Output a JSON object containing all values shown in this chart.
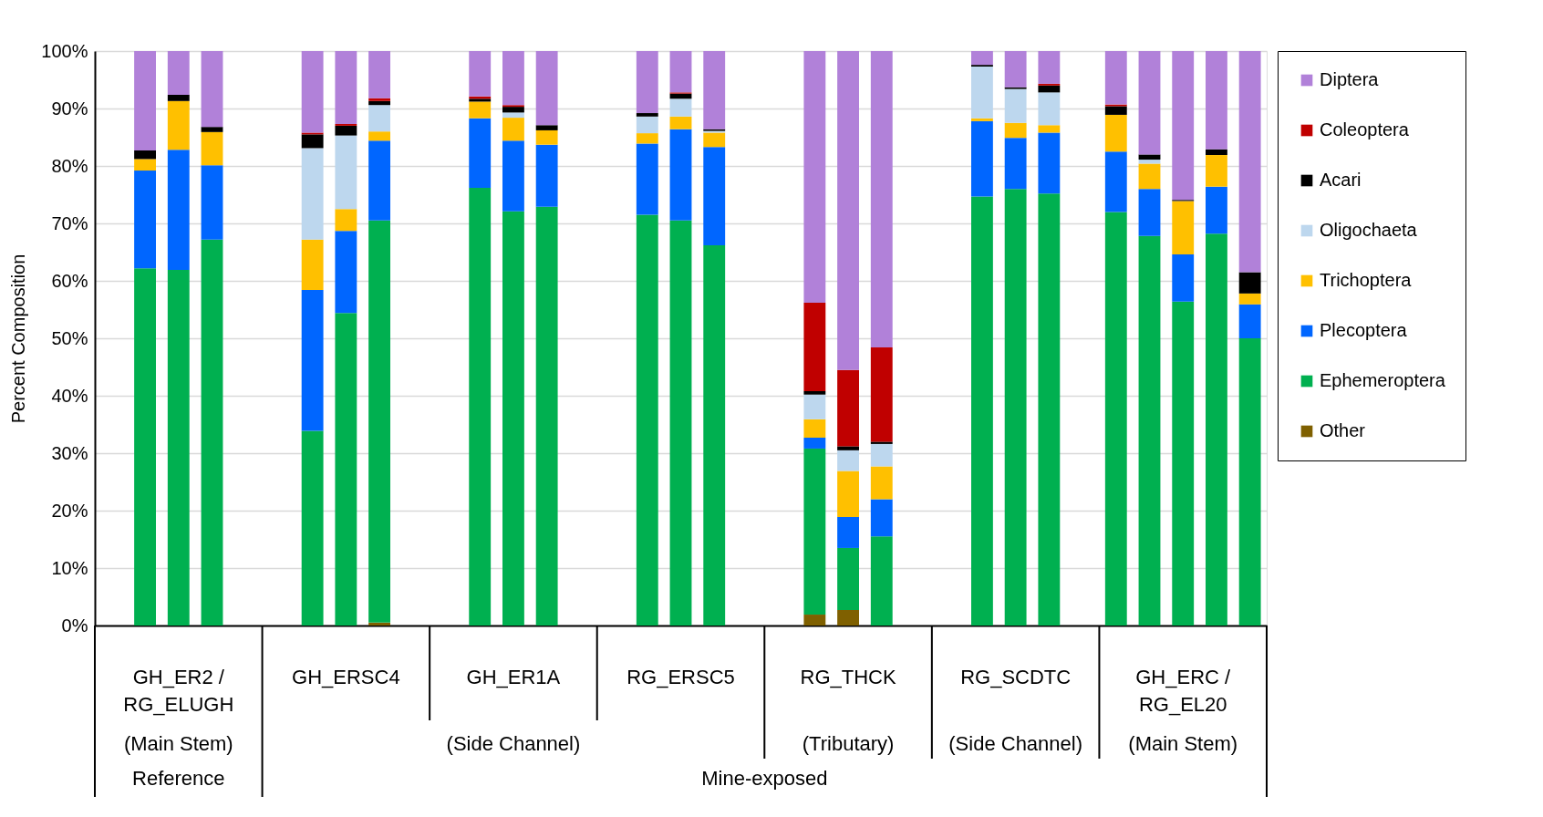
{
  "chart_data": {
    "type": "bar",
    "stacked": true,
    "ylabel": "Percent Composition",
    "categories": [
      null,
      null,
      "GH_ER2 / RG_ELUGH",
      null,
      null,
      null,
      null,
      "GH_ERSC4",
      null,
      null,
      null,
      null,
      "GH_ER1A",
      null,
      null,
      null,
      null,
      "RG_ERSC5",
      null,
      null,
      null,
      null,
      "RG_THCK",
      null,
      null,
      null,
      null,
      "RG_SCDTC",
      null,
      null,
      null,
      null,
      "GH_ERC / RG_EL20",
      null,
      null
    ],
    "series": [
      {
        "name": "Other",
        "color": "#7f6000",
        "values": [
          null,
          0,
          0,
          0,
          null,
          null,
          0,
          0,
          0.5,
          null,
          null,
          0,
          0,
          0,
          null,
          null,
          0,
          0,
          0,
          null,
          null,
          1.9,
          2.7,
          0,
          null,
          null,
          0,
          0,
          0,
          null,
          0,
          0,
          0,
          0,
          0
        ]
      },
      {
        "name": "Ephemeroptera",
        "color": "#00b050",
        "values": [
          null,
          62.2,
          61.9,
          67.2,
          null,
          null,
          33.9,
          54.4,
          70.0,
          null,
          null,
          76.2,
          72.1,
          72.9,
          null,
          null,
          71.5,
          70.5,
          66.2,
          null,
          null,
          28.9,
          10.8,
          15.5,
          null,
          null,
          74.7,
          76.0,
          75.2,
          null,
          72.0,
          67.8,
          56.4,
          68.2,
          50.0
        ]
      },
      {
        "name": "Plecoptera",
        "color": "#0066ff",
        "values": [
          null,
          17.0,
          20.9,
          12.9,
          null,
          null,
          24.5,
          14.3,
          13.9,
          null,
          null,
          12.1,
          12.3,
          10.8,
          null,
          null,
          12.4,
          15.9,
          17.1,
          null,
          null,
          1.9,
          5.4,
          6.5,
          null,
          null,
          13.1,
          8.9,
          10.6,
          null,
          10.5,
          8.2,
          8.2,
          8.2,
          5.9
        ]
      },
      {
        "name": "Trichoptera",
        "color": "#ffc000",
        "values": [
          null,
          2.0,
          8.5,
          5.8,
          null,
          null,
          8.8,
          3.8,
          1.6,
          null,
          null,
          2.9,
          4.0,
          2.5,
          null,
          null,
          1.8,
          2.2,
          2.5,
          null,
          null,
          3.2,
          8.0,
          5.7,
          null,
          null,
          0.5,
          2.6,
          1.3,
          null,
          6.4,
          4.4,
          9.3,
          5.5,
          1.9
        ]
      },
      {
        "name": "Oligochaeta",
        "color": "#bdd7ee",
        "values": [
          null,
          0,
          0,
          0,
          null,
          null,
          15.9,
          12.8,
          4.6,
          null,
          null,
          0,
          0.9,
          0,
          null,
          null,
          2.9,
          3.1,
          0.3,
          null,
          null,
          4.3,
          3.6,
          3.9,
          null,
          null,
          9.0,
          5.9,
          5.7,
          null,
          0,
          0.7,
          0,
          0,
          0
        ]
      },
      {
        "name": "Acari",
        "color": "#000000",
        "values": [
          null,
          1.5,
          1.1,
          0.9,
          null,
          null,
          2.4,
          1.7,
          0.7,
          null,
          null,
          0.5,
          1.0,
          0.9,
          null,
          null,
          0.6,
          0.9,
          0.3,
          null,
          null,
          0.6,
          0.7,
          0.4,
          null,
          null,
          0.3,
          0.3,
          1.2,
          null,
          1.5,
          0.9,
          0.2,
          1.0,
          3.7
        ]
      },
      {
        "name": "Coleoptera",
        "color": "#c00000",
        "values": [
          null,
          0,
          0,
          0,
          null,
          null,
          0.3,
          0.3,
          0.5,
          null,
          null,
          0.4,
          0.3,
          0,
          null,
          null,
          0,
          0.2,
          0,
          null,
          null,
          15.4,
          13.3,
          16.4,
          null,
          null,
          0,
          0,
          0.3,
          null,
          0.3,
          0,
          0,
          0,
          0
        ]
      },
      {
        "name": "Diptera",
        "color": "#b181d9",
        "values": [
          null,
          17.3,
          7.6,
          13.2,
          null,
          null,
          14.2,
          12.7,
          8.2,
          null,
          null,
          7.9,
          9.4,
          12.9,
          null,
          null,
          10.8,
          7.2,
          13.6,
          null,
          null,
          43.8,
          55.5,
          51.6,
          null,
          null,
          2.4,
          6.3,
          5.7,
          null,
          9.3,
          18.0,
          25.9,
          17.1,
          38.5
        ]
      }
    ],
    "annotations": [
      "(Main Stem)",
      "(Side Channel)",
      "(Tributary)",
      "(Side Channel)",
      "(Main Stem)",
      "Reference",
      "Mine-exposed"
    ],
    "ylim": [
      0,
      100
    ],
    "yticks": [
      {
        "value": 0,
        "label": "0%"
      },
      {
        "value": 10,
        "label": "10%"
      },
      {
        "value": 20,
        "label": "20%"
      },
      {
        "value": 30,
        "label": "30%"
      },
      {
        "value": 40,
        "label": "40%"
      },
      {
        "value": 50,
        "label": "50%"
      },
      {
        "value": 60,
        "label": "60%"
      },
      {
        "value": 70,
        "label": "70%"
      },
      {
        "value": 80,
        "label": "80%"
      },
      {
        "value": 90,
        "label": "90%"
      },
      {
        "value": 100,
        "label": "100%"
      }
    ],
    "grid": "y",
    "legend": "right"
  }
}
